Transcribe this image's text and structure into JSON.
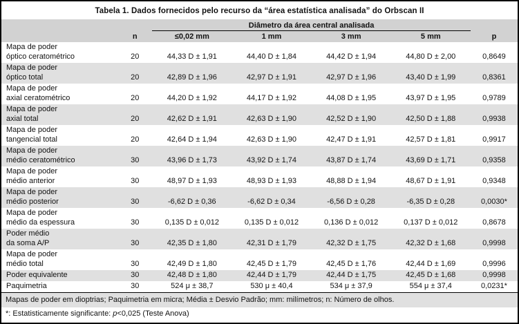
{
  "colors": {
    "header_band": "#d2d2d2",
    "row_stripe": "#e0e0e0",
    "border": "#000000",
    "background": "#ffffff"
  },
  "table": {
    "title": "Tabela 1. Dados fornecidos pelo recurso da “área estatística analisada” do Orbscan II",
    "group_header": "Diâmetro da área central analisada",
    "columns": {
      "n": "n",
      "d1": "≤0,02 mm",
      "d2": "1 mm",
      "d3": "3 mm",
      "d4": "5 mm",
      "p": "p"
    },
    "rows": [
      {
        "label1": "Mapa de poder",
        "label2": "óptico ceratométrico",
        "n": "20",
        "values": [
          "44,33 D ± 1,91",
          "44,40 D ± 1,84",
          "44,42 D ± 1,94",
          "44,80 D ± 2,00"
        ],
        "p": "0,8649"
      },
      {
        "label1": "Mapa de poder",
        "label2": "óptico total",
        "n": "20",
        "values": [
          "42,89 D ± 1,96",
          "42,97 D ± 1,91",
          "42,97 D ± 1,96",
          "43,40 D ± 1,99"
        ],
        "p": "0,8361"
      },
      {
        "label1": "Mapa de poder",
        "label2": "axial ceratométrico",
        "n": "20",
        "values": [
          "44,20 D ± 1,92",
          "44,17 D ± 1,92",
          "44,08 D ± 1,95",
          "43,97 D ± 1,95"
        ],
        "p": "0,9789"
      },
      {
        "label1": "Mapa de poder",
        "label2": "axial total",
        "n": "20",
        "values": [
          "42,62 D ± 1,91",
          "42,63 D ± 1,90",
          "42,52 D ± 1,90",
          "42,50 D ± 1,88"
        ],
        "p": "0,9938"
      },
      {
        "label1": "Mapa de poder",
        "label2": "tangencial total",
        "n": "20",
        "values": [
          "42,64 D ± 1,94",
          "42,63 D ± 1,90",
          "42,47 D ± 1,91",
          "42,57 D ± 1,81"
        ],
        "p": "0,9917"
      },
      {
        "label1": "Mapa de poder",
        "label2": "médio ceratométrico",
        "n": "30",
        "values": [
          "43,96 D ± 1,73",
          "43,92 D ± 1,74",
          "43,87 D ± 1,74",
          "43,69 D ± 1,71"
        ],
        "p": "0,9358"
      },
      {
        "label1": "Mapa de poder",
        "label2": "médio anterior",
        "n": "30",
        "values": [
          "48,97 D ± 1,93",
          "48,93 D ± 1,93",
          "48,88 D ± 1,94",
          "48,67 D ± 1,91"
        ],
        "p": "0,9348"
      },
      {
        "label1": "Mapa de poder",
        "label2": "médio posterior",
        "n": "30",
        "values": [
          "-6,62 D ± 0,36",
          "-6,62 D ± 0,34",
          "-6,56 D ± 0,28",
          "-6,35 D ± 0,28"
        ],
        "p": "0,0030*"
      },
      {
        "label1": "Mapa de poder",
        "label2": "médio da espessura",
        "n": "30",
        "values": [
          "0,135 D ± 0,012",
          "0,135 D ± 0,012",
          "0,136 D ± 0,012",
          "0,137 D ± 0,012"
        ],
        "p": "0,8678"
      },
      {
        "label1": "Poder médio",
        "label2": "da soma A/P",
        "n": "30",
        "values": [
          "42,35 D ± 1,80",
          "42,31 D ± 1,79",
          "42,32 D ± 1,75",
          "42,32 D ± 1,68"
        ],
        "p": "0,9998"
      },
      {
        "label1": "Mapa de poder",
        "label2": "médio total",
        "n": "30",
        "values": [
          "42,49 D ± 1,80",
          "42,45 D ± 1,79",
          "42,45 D ± 1,76",
          "42,44 D ± 1,69"
        ],
        "p": "0,9996"
      },
      {
        "label1": "",
        "label2": "Poder equivalente",
        "n": "30",
        "values": [
          "42,48 D ± 1,80",
          "42,44 D ± 1,79",
          "42,44 D ± 1,75",
          "42,45 D ± 1,68"
        ],
        "p": "0,9998"
      },
      {
        "label1": "",
        "label2": "Paquimetria",
        "n": "30",
        "values": [
          "524 μ ± 38,7",
          "530 μ ± 40,4",
          "534 μ ± 37,9",
          "554 μ ± 37,4"
        ],
        "p": "0,0231*"
      }
    ],
    "footnote1": "Mapas de poder em dioptrias; Paquimetria em micra; Média ± Desvio Padrão; mm: milímetros; n: Número de olhos.",
    "footnote2_prefix": "*: Estatisticamente significante: ",
    "footnote2_italic": "p",
    "footnote2_suffix": "<0,025 (Teste Anova)"
  }
}
